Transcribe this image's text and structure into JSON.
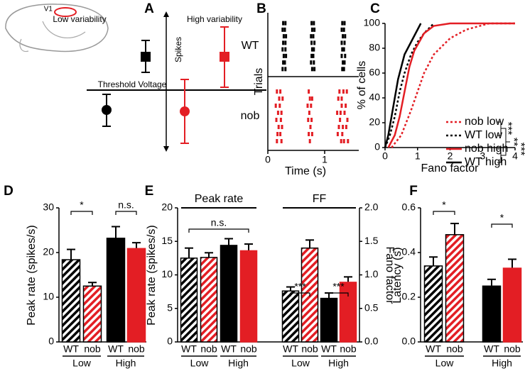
{
  "schematic": {
    "panel": "A",
    "region": "V1",
    "low": "Low variability",
    "high": "High variability",
    "y_axis": "Spikes",
    "x_axis": "Threshold Voltage"
  },
  "chart_data": [
    {
      "type": "raster",
      "panel": "B",
      "xlabel": "Time (s)",
      "ylabel": "Trials",
      "xlim": [
        0,
        1.6
      ],
      "xticks": [
        0,
        1
      ],
      "series": [
        {
          "name": "WT",
          "color": "#000000",
          "trials": [
            [
              0.27,
              0.31,
              0.77,
              0.81,
              1.31,
              1.35
            ],
            [
              0.26,
              0.3,
              0.78,
              0.82,
              1.3,
              1.34
            ],
            [
              0.28,
              0.32,
              0.76,
              0.8,
              1.32,
              1.36
            ],
            [
              0.27,
              0.31,
              0.77,
              0.82,
              1.3,
              1.35
            ],
            [
              0.26,
              0.31,
              0.78,
              0.81,
              1.31,
              1.34
            ],
            [
              0.28,
              0.32,
              0.77,
              0.8,
              1.3,
              1.36
            ],
            [
              0.27,
              0.3,
              0.76,
              0.81,
              1.32,
              1.35
            ],
            [
              0.26,
              0.31,
              0.78,
              0.82,
              1.31,
              1.34
            ]
          ]
        },
        {
          "name": "nob",
          "color": "#e31e24",
          "trials": [
            [
              0.16,
              0.22,
              0.72,
              1.26,
              1.33,
              1.39
            ],
            [
              0.2,
              0.26,
              0.74,
              0.78,
              1.24,
              1.3
            ],
            [
              0.14,
              0.21,
              0.7,
              0.76,
              1.3,
              1.37
            ],
            [
              0.18,
              0.24,
              0.73,
              1.22,
              1.28,
              1.35
            ],
            [
              0.15,
              0.23,
              0.71,
              0.77,
              1.27,
              1.4
            ],
            [
              0.19,
              0.25,
              0.75,
              1.25,
              1.32,
              1.38
            ],
            [
              0.17,
              0.22,
              0.72,
              0.78,
              1.23,
              1.31
            ],
            [
              0.16,
              0.24,
              0.74,
              1.29,
              1.34,
              1.41
            ]
          ]
        }
      ]
    },
    {
      "type": "line",
      "panel": "C",
      "xlabel": "Fano factor",
      "ylabel": "% of cells",
      "xlim": [
        0,
        4
      ],
      "ylim": [
        0,
        100
      ],
      "xticks": [
        0,
        1,
        2,
        3,
        4
      ],
      "yticks": [
        0,
        20,
        40,
        60,
        80,
        100
      ],
      "legend": "lower right",
      "series": [
        {
          "name": "nob low",
          "color": "#e31e24",
          "dashed": true,
          "x": [
            0.2,
            0.5,
            0.8,
            1.0,
            1.2,
            1.5,
            2.0,
            2.5,
            3.2,
            4.0
          ],
          "values": [
            0,
            10,
            30,
            45,
            60,
            75,
            88,
            95,
            100,
            100
          ]
        },
        {
          "name": "WT low",
          "color": "#000000",
          "dashed": true,
          "x": [
            0,
            0.15,
            0.3,
            0.45,
            0.6,
            0.8,
            1.0,
            1.2,
            1.5
          ],
          "values": [
            0,
            10,
            25,
            45,
            60,
            75,
            85,
            92,
            100
          ]
        },
        {
          "name": "nob high",
          "color": "#e31e24",
          "dashed": false,
          "x": [
            0.1,
            0.3,
            0.45,
            0.6,
            0.75,
            0.9,
            1.2,
            1.5,
            2.0,
            4.0
          ],
          "values": [
            0,
            10,
            25,
            45,
            65,
            78,
            92,
            98,
            100,
            100
          ]
        },
        {
          "name": "WT high",
          "color": "#000000",
          "dashed": false,
          "x": [
            0,
            0.1,
            0.2,
            0.3,
            0.4,
            0.5,
            0.6,
            0.8,
            1.0,
            1.1
          ],
          "values": [
            0,
            10,
            25,
            40,
            55,
            65,
            75,
            85,
            95,
            100
          ]
        }
      ],
      "annotations": [
        "***",
        "**",
        "***"
      ]
    },
    {
      "type": "bar",
      "panel": "D",
      "ylabel": "Peak rate (spikes/s)",
      "ylim": [
        0,
        30
      ],
      "yticks": [
        0,
        10,
        20,
        30
      ],
      "categories": [
        "WT",
        "nob",
        "WT",
        "nob"
      ],
      "groups": [
        "Low",
        "High"
      ],
      "colors": [
        "#000000",
        "#e31e24",
        "#000000",
        "#e31e24"
      ],
      "hatch": [
        true,
        true,
        false,
        false
      ],
      "values": [
        18.4,
        12.5,
        23.2,
        20.9
      ],
      "errors": [
        2.3,
        0.8,
        2.6,
        1.3
      ],
      "annotations": [
        "*",
        "n.s."
      ]
    },
    {
      "type": "bar",
      "panel": "E",
      "ylabel": "Peak rate (spikes/s)",
      "y2label": "Fano factor",
      "ylim": [
        0,
        20
      ],
      "yticks": [
        0,
        5,
        10,
        15,
        20
      ],
      "y2lim": [
        0,
        2
      ],
      "y2ticks": [
        {
          "value": 0,
          "label": "0.0"
        },
        0.5,
        {
          "value": 1,
          "label": "1.0"
        },
        1.5,
        {
          "value": 2,
          "label": "2.0"
        }
      ],
      "categories": [
        "WT",
        "nob",
        "WT",
        "nob"
      ],
      "groups": [
        "Low",
        "High"
      ],
      "colors": [
        "#000000",
        "#e31e24",
        "#000000",
        "#e31e24"
      ],
      "hatch": [
        true,
        true,
        false,
        false
      ],
      "series": [
        {
          "name": "Peak rate",
          "values": [
            12.5,
            12.6,
            14.4,
            13.6
          ],
          "errors": [
            1.5,
            0.7,
            1.0,
            1.0
          ]
        },
        {
          "name": "FF",
          "axis": "y2",
          "values": [
            0.76,
            1.4,
            0.65,
            0.89
          ],
          "errors": [
            0.06,
            0.12,
            0.08,
            0.08
          ]
        }
      ],
      "annotations": [
        "n.s.",
        "***",
        "***"
      ]
    },
    {
      "type": "bar",
      "panel": "F",
      "ylabel": "Latency (s)",
      "ylim": [
        0,
        0.6
      ],
      "yticks": [
        {
          "value": 0,
          "label": "0.0"
        },
        0.2,
        0.4,
        0.6
      ],
      "categories": [
        "WT",
        "nob",
        "WT",
        "nob"
      ],
      "groups": [
        "Low",
        "High"
      ],
      "colors": [
        "#000000",
        "#e31e24",
        "#000000",
        "#e31e24"
      ],
      "hatch": [
        true,
        true,
        false,
        false
      ],
      "values": [
        0.34,
        0.48,
        0.25,
        0.33
      ],
      "errors": [
        0.04,
        0.05,
        0.03,
        0.04
      ],
      "annotations": [
        "*",
        "*"
      ]
    }
  ]
}
